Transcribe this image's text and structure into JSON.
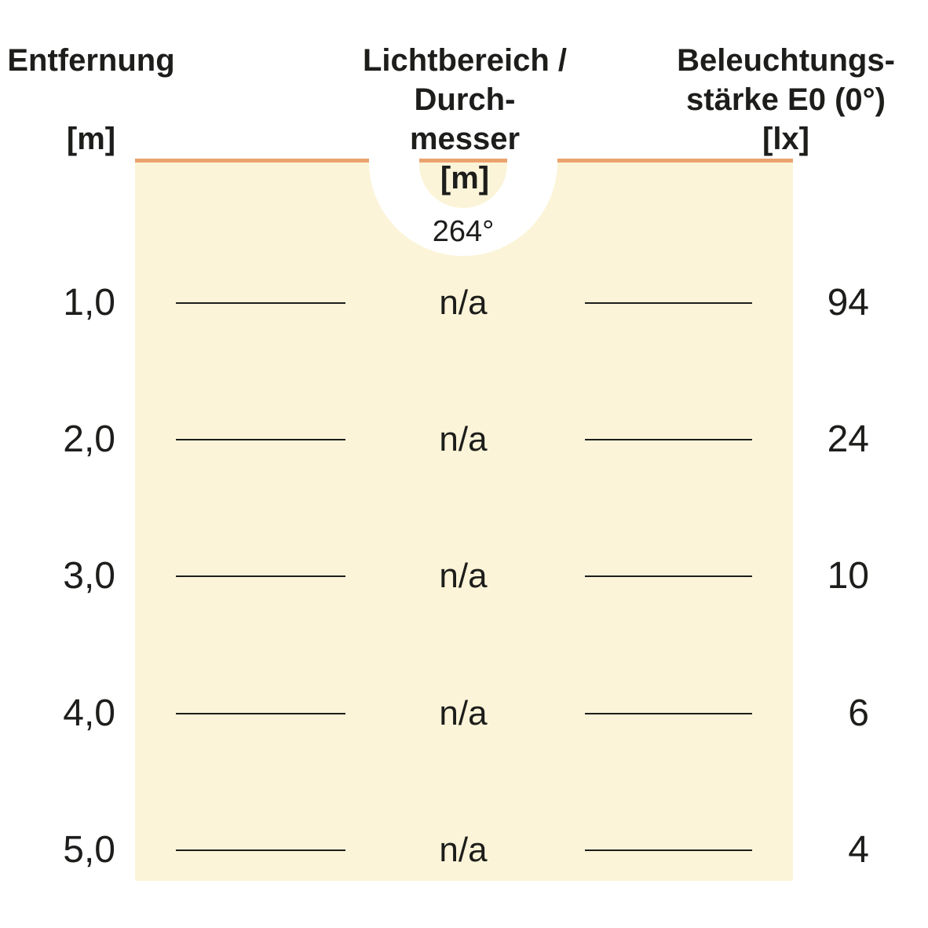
{
  "chart_data": {
    "type": "table",
    "title": "",
    "columns": [
      "Entfernung [m]",
      "Lichtbereich / Durchmesser [m]",
      "Beleuchtungsstärke E0 (0°) [lx]"
    ],
    "beam_angle_deg": 264,
    "rows": [
      {
        "distance_m": "1,0",
        "diameter_m": "n/a",
        "illuminance_lx": 94
      },
      {
        "distance_m": "2,0",
        "diameter_m": "n/a",
        "illuminance_lx": 24
      },
      {
        "distance_m": "3,0",
        "diameter_m": "n/a",
        "illuminance_lx": 10
      },
      {
        "distance_m": "4,0",
        "diameter_m": "n/a",
        "illuminance_lx": 6
      },
      {
        "distance_m": "5,0",
        "diameter_m": "n/a",
        "illuminance_lx": 4
      }
    ]
  },
  "header": {
    "col1": {
      "title": "Entfernung",
      "unit": "[m]"
    },
    "col2": {
      "line1": "Lichtbereich / Durch-",
      "line2": "messer",
      "unit": "[m]"
    },
    "col3": {
      "line1": "Beleuchtungs-",
      "line2": "stärke E0 (0°)",
      "unit": "[lx]"
    }
  },
  "beam": {
    "angle_label": "264°"
  },
  "rows": [
    {
      "distance": "1,0",
      "diameter": "n/a",
      "value": "94"
    },
    {
      "distance": "2,0",
      "diameter": "n/a",
      "value": "24"
    },
    {
      "distance": "3,0",
      "diameter": "n/a",
      "value": "10"
    },
    {
      "distance": "4,0",
      "diameter": "n/a",
      "value": "6"
    },
    {
      "distance": "5,0",
      "diameter": "n/a",
      "value": "4"
    }
  ],
  "colors": {
    "panel_bg": "#FBF4D8",
    "accent": "#EBA36E",
    "text": "#1D1D1B"
  }
}
